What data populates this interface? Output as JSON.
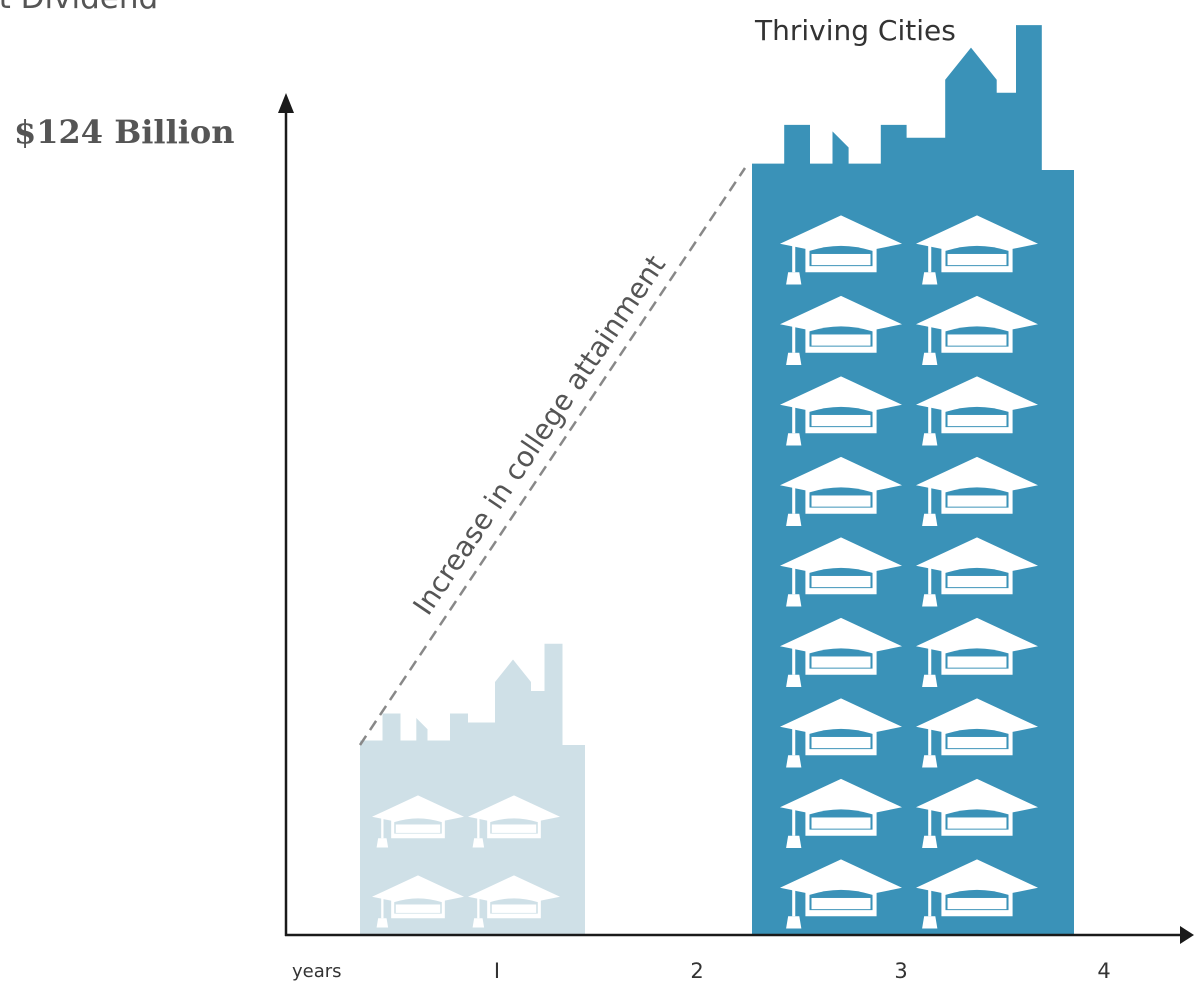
{
  "title": "it Dividend",
  "colors": {
    "small_city": "#cfe0e7",
    "large_city": "#3a92b8",
    "axis": "#1a1a1a",
    "trend": "#888888",
    "cap": "#ffffff"
  },
  "icons": {
    "small_city": "city-skyline-icon",
    "large_city": "city-skyline-icon",
    "cap": "graduation-cap-icon"
  },
  "chart_data": {
    "type": "bar",
    "xlabel": "years",
    "ticks": [
      "I",
      "2",
      "3",
      "4"
    ],
    "series": [
      {
        "value_label": "",
        "caps": {
          "rows": 2,
          "cols": 2
        }
      },
      {
        "name": "Thriving Cities",
        "value_label": "$124 Billion",
        "caps": {
          "rows": 9,
          "cols": 2
        }
      }
    ],
    "annotation": "Increase in college attainment"
  }
}
